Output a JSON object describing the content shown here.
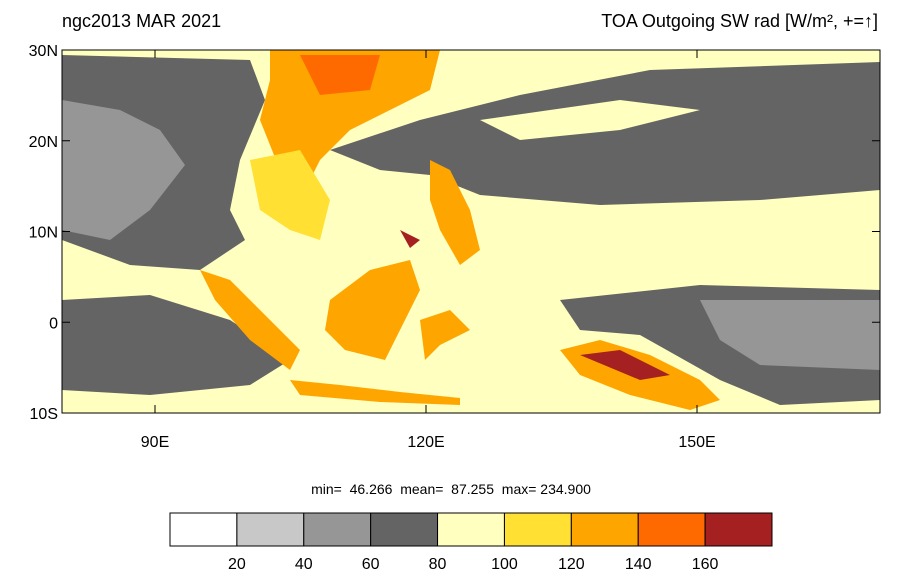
{
  "header": {
    "left_title": "ngc2013 MAR 2021",
    "right_title": "TOA Outgoing SW rad [W/m², +=↑]"
  },
  "map": {
    "lat_labels": [
      "30N",
      "20N",
      "10N",
      "0",
      "10S"
    ],
    "lon_labels": [
      "90E",
      "120E",
      "150E"
    ]
  },
  "stats": "min=  46.266  mean=  87.255  max= 234.900",
  "colorbar": {
    "colors": [
      "#ffffff",
      "#c8c8c8",
      "#969696",
      "#646464",
      "#ffffc0",
      "#ffe033",
      "#ffa500",
      "#ff6a00",
      "#a52020"
    ],
    "labels": [
      "20",
      "40",
      "60",
      "80",
      "100",
      "120",
      "140",
      "160"
    ]
  }
}
